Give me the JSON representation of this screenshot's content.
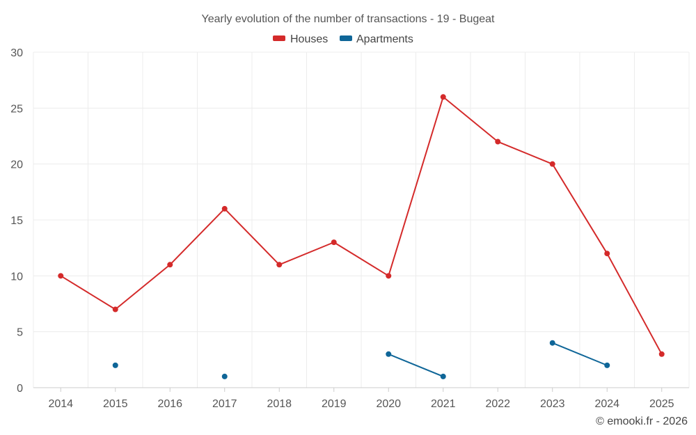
{
  "chart_data": {
    "type": "line",
    "title": "Yearly evolution of the number of transactions - 19 - Bugeat",
    "categories": [
      "2014",
      "2015",
      "2016",
      "2017",
      "2018",
      "2019",
      "2020",
      "2021",
      "2022",
      "2023",
      "2024",
      "2025"
    ],
    "ylim": [
      0,
      30
    ],
    "yticks": [
      "0",
      "5",
      "10",
      "15",
      "20",
      "25",
      "30"
    ],
    "grid": true,
    "legend_position": "top-center",
    "series": [
      {
        "name": "Houses",
        "color": "#d42a2a",
        "values": [
          10,
          7,
          11,
          16,
          11,
          13,
          10,
          26,
          22,
          20,
          12,
          3
        ]
      },
      {
        "name": "Apartments",
        "color": "#0f6698",
        "values": [
          null,
          2,
          null,
          1,
          null,
          null,
          3,
          1,
          null,
          4,
          2,
          null
        ]
      }
    ],
    "credit": "© emooki.fr - 2026"
  }
}
